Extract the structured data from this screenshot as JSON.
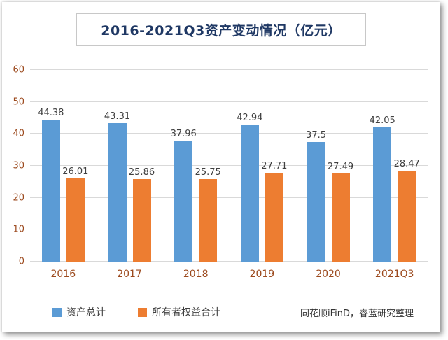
{
  "chart_data": {
    "type": "bar",
    "title": "2016-2021Q3资产变动情况（亿元）",
    "categories": [
      "2016",
      "2017",
      "2018",
      "2019",
      "2020",
      "2021Q3"
    ],
    "series": [
      {
        "name": "资产总计",
        "color": "#5B9BD5",
        "values": [
          44.38,
          43.31,
          37.96,
          42.94,
          37.5,
          42.05
        ]
      },
      {
        "name": "所有者权益合计",
        "color": "#ED7D31",
        "values": [
          26.01,
          25.86,
          25.75,
          27.71,
          27.49,
          28.47
        ]
      }
    ],
    "ylim": [
      0,
      60
    ],
    "ytick_step": 10,
    "grid": true,
    "legend_position": "bottom",
    "source": "同花顺iFinD，睿蓝研究整理"
  },
  "colors": {
    "title_text": "#1F3864",
    "axis_label": "#9C4A1E",
    "data_label": "#3F3F3F",
    "gridline": "#D9D9D9",
    "title_border": "#C8C8C8"
  }
}
